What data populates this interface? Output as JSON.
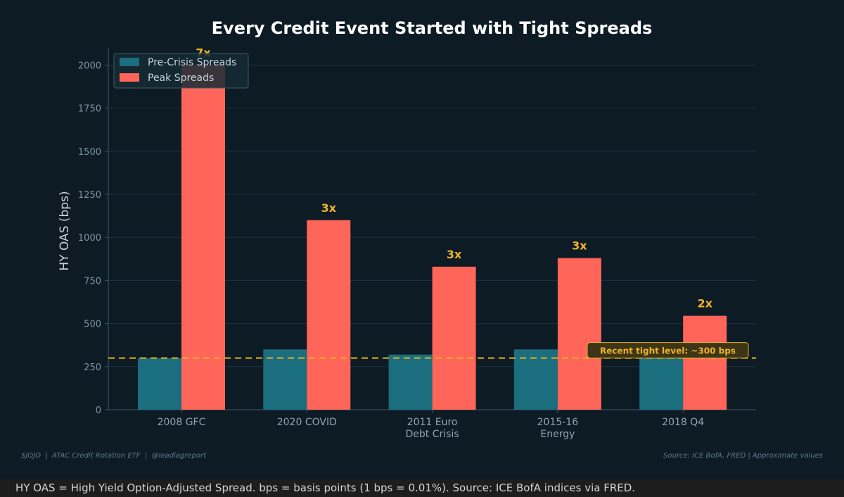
{
  "chart_data": {
    "type": "bar",
    "title": "Every Credit Event Started with Tight Spreads",
    "ylabel": "HY OAS (bps)",
    "xlabel": "",
    "ylim": [
      0,
      2100
    ],
    "yticks": [
      0,
      250,
      500,
      750,
      1000,
      1250,
      1500,
      1750,
      2000
    ],
    "grid": true,
    "legend_position": "top-left",
    "categories": [
      [
        "2008 GFC"
      ],
      [
        "2020 COVID"
      ],
      [
        "2011 Euro",
        "Debt Crisis"
      ],
      [
        "2015-16",
        "Energy"
      ],
      [
        "2018 Q4"
      ]
    ],
    "series": [
      {
        "name": "Pre-Crisis Spreads",
        "color": "#1a6e7e",
        "values": [
          300,
          350,
          320,
          350,
          300
        ]
      },
      {
        "name": "Peak Spreads",
        "color": "#ff6659",
        "values": [
          2000,
          1100,
          830,
          880,
          545
        ]
      }
    ],
    "multiplier_labels": [
      "7x",
      "3x",
      "3x",
      "3x",
      "2x"
    ],
    "reference_line": {
      "value": 300,
      "label": "Recent tight level: ~300 bps",
      "color": "#e8b422"
    },
    "footer_left": "$JOJO  |  ATAC Credit Rotation ETF  |  @leadlagreport",
    "footer_right": "Source: ICE BofA, FRED | Approximate values"
  },
  "caption": "HY OAS = High Yield Option-Adjusted Spread. bps = basis points (1 bps = 0.01%). Source: ICE BofA indices via FRED."
}
